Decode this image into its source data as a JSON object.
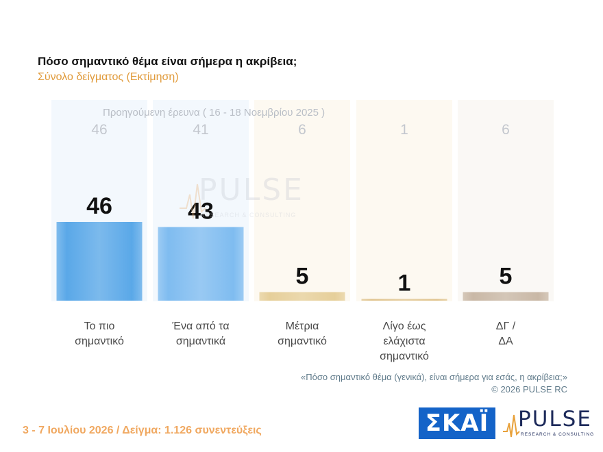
{
  "title": "Πόσο σημαντικό θέμα είναι σήμερα η ακρίβεια;",
  "subtitle": "Σύνολο δείγματος (Εκτίμηση)",
  "previous_label": "Προηγούμενη έρευνα ( 16 - 18 Νοεμβρίου 2025 )",
  "question_note": "«Πόσο σημαντικό θέμα (γενικά), είναι σήμερα για εσάς, η ακρίβεια;»",
  "copyright": "©  2026  PULSE RC",
  "footer": "3 - 7  Ιουλίου 2026  /  Δείγμα:  1.126 συνεντεύξεις",
  "logos": {
    "skai": "ΣΚΑΪ",
    "pulse": "PULSE",
    "pulse_sub": "RESEARCH & CONSULTING"
  },
  "chart_data": {
    "type": "bar",
    "categories": [
      [
        "Το πιο",
        "σημαντικό"
      ],
      [
        "Ένα από τα",
        "σημαντικά"
      ],
      [
        "Μέτρια",
        "σημαντικό"
      ],
      [
        "Λίγο έως",
        "ελάχιστα",
        "σημαντικό"
      ],
      [
        "ΔΓ /",
        "ΔΑ"
      ]
    ],
    "values": [
      46,
      43,
      5,
      1,
      5
    ],
    "previous_values": [
      46,
      41,
      6,
      1,
      6
    ],
    "colors": [
      "#5aa8e8",
      "#7fbcf0",
      "#e6cf9a",
      "#e0c48f",
      "#c9b8a6"
    ],
    "column_bg": [
      "#f3f8fd",
      "#f3f8fd",
      "#fdf9f1",
      "#fdf9f1",
      "#faf8f5"
    ]
  }
}
